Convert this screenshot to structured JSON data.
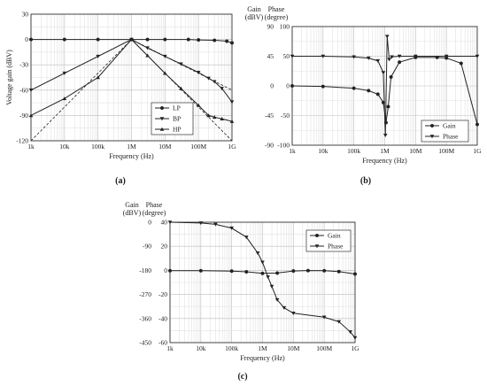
{
  "figure": {
    "panel_labels": [
      "(a)",
      "(b)",
      "(c)"
    ]
  },
  "chart_data": [
    {
      "panel": "(a)",
      "type": "line",
      "xlabel": "Frequency (Hz)",
      "ylabel": "Voltage gain (dBV)",
      "xscale": "log",
      "xlim": [
        1000,
        1000000000
      ],
      "ylim": [
        -120,
        30
      ],
      "xticks": [
        1000,
        10000,
        100000,
        1000000,
        10000000,
        100000000,
        1000000000
      ],
      "xticklabels": [
        "1k",
        "10k",
        "100k",
        "1M",
        "10M",
        "100M",
        "1G"
      ],
      "yticks": [
        -120,
        -90,
        -60,
        -30,
        0,
        30
      ],
      "yticklabels": [
        "-120",
        "-90",
        "-60",
        "-30",
        "0",
        "30"
      ],
      "grid": true,
      "legend_position": "bottom-right",
      "series": [
        {
          "name": "LP",
          "marker": "circle",
          "x": [
            1000,
            10000,
            100000,
            1000000,
            3000000,
            10000000,
            50000000,
            100000000,
            300000000,
            700000000,
            1000000000
          ],
          "y": [
            0,
            0,
            0,
            0,
            0,
            0,
            0,
            -0.5,
            -1,
            -2,
            -4
          ]
        },
        {
          "name": "BP",
          "marker": "triangle-down",
          "x": [
            1000,
            10000,
            100000,
            1000000,
            3000000,
            10000000,
            30000000,
            100000000,
            200000000,
            300000000,
            500000000,
            1000000000
          ],
          "y": [
            -60,
            -40,
            -20,
            0,
            -10,
            -20,
            -29,
            -39,
            -46,
            -50,
            -58,
            -74
          ]
        },
        {
          "name": "HP",
          "marker": "triangle-up",
          "x": [
            1000,
            10000,
            100000,
            1000000,
            3000000,
            10000000,
            30000000,
            100000000,
            200000000,
            300000000,
            500000000,
            1000000000
          ],
          "y": [
            -90,
            -70,
            -45,
            0,
            -19,
            -40,
            -58,
            -78,
            -90,
            -92,
            -94,
            -97
          ]
        },
        {
          "name": "",
          "style": "dashed",
          "x": [
            1000,
            1000000,
            1000000000
          ],
          "y": [
            -120,
            0,
            -120
          ]
        },
        {
          "name": "",
          "style": "dashed",
          "x": [
            1000,
            1000000,
            1000000000
          ],
          "y": [
            -60,
            0,
            -60
          ]
        }
      ]
    },
    {
      "panel": "(b)",
      "type": "line",
      "xlabel": "Frequency (Hz)",
      "ylabel": "Gain (dBV)",
      "y2label": "Phase (degree)",
      "xscale": "log",
      "xlim": [
        1000,
        1000000000
      ],
      "ylim": [
        -100,
        100
      ],
      "y2lim": [
        -90,
        90
      ],
      "xticks": [
        1000,
        10000,
        100000,
        1000000,
        10000000,
        100000000,
        1000000000
      ],
      "xticklabels": [
        "1k",
        "10k",
        "100k",
        "1M",
        "10M",
        "100M",
        "1G"
      ],
      "yticks": [
        -100,
        -50,
        0,
        50,
        100
      ],
      "yticklabels": [
        "-100",
        "-50",
        "0",
        "50",
        "100"
      ],
      "y2ticks": [
        -90,
        -45,
        0,
        45,
        90
      ],
      "y2ticklabels": [
        "-90",
        "-45",
        "0",
        "45",
        "90"
      ],
      "grid": true,
      "legend_position": "bottom-right",
      "series": [
        {
          "name": "Gain",
          "marker": "circle",
          "x": [
            1000,
            10000,
            100000,
            300000,
            600000,
            900000,
            1100000,
            1300000,
            1600000,
            3000000,
            10000000,
            50000000,
            100000000,
            300000000,
            1000000000
          ],
          "y": [
            0,
            -1,
            -4,
            -8,
            -14,
            -28,
            -62,
            -35,
            15,
            40,
            48,
            48,
            47,
            38,
            -65
          ]
        },
        {
          "name": "Phase",
          "marker": "triangle-down",
          "x": [
            1000,
            10000,
            100000,
            300000,
            600000,
            900000,
            1050000,
            1200000,
            1400000,
            1700000,
            3000000,
            10000000,
            100000000,
            1000000000
          ],
          "y": [
            45,
            45,
            44,
            42,
            38,
            20,
            -75,
            75,
            40,
            44,
            45,
            45,
            45,
            45
          ]
        }
      ]
    },
    {
      "panel": "(c)",
      "type": "line",
      "xlabel": "Frequency (Hz)",
      "ylabel": "Gain (dBV)",
      "y2label": "Phase (degree)",
      "xscale": "log",
      "xlim": [
        1000,
        1000000000
      ],
      "ylim": [
        -60,
        40
      ],
      "y2lim": [
        -450,
        0
      ],
      "xticks": [
        1000,
        10000,
        100000,
        1000000,
        10000000,
        100000000,
        1000000000
      ],
      "xticklabels": [
        "1k",
        "10k",
        "100k",
        "1M",
        "10M",
        "100M",
        "1G"
      ],
      "yticks": [
        -60,
        -40,
        -20,
        0,
        20,
        40
      ],
      "yticklabels": [
        "-60",
        "-40",
        "-20",
        "0",
        "20",
        "40"
      ],
      "y2ticks": [
        -450,
        -360,
        -270,
        -180,
        -90,
        0
      ],
      "y2ticklabels": [
        "-450",
        "-360",
        "-270",
        "-180",
        "-90",
        "0"
      ],
      "grid": true,
      "legend_position": "top-right",
      "series": [
        {
          "name": "Gain",
          "marker": "circle",
          "x": [
            1000,
            10000,
            100000,
            300000,
            1000000,
            3000000,
            10000000,
            30000000,
            100000000,
            300000000,
            1000000000
          ],
          "y": [
            -0.3,
            -0.3,
            -0.6,
            -1.2,
            -2.5,
            -2.2,
            -0.5,
            -0.2,
            -0.3,
            -1,
            -3
          ]
        },
        {
          "name": "Phase",
          "marker": "triangle-down",
          "x": [
            1000,
            10000,
            30000,
            100000,
            300000,
            700000,
            1000000,
            1500000,
            2000000,
            3000000,
            5000000,
            10000000,
            100000000,
            300000000,
            700000000,
            1000000000
          ],
          "y": [
            0,
            -3,
            -8,
            -22,
            -56,
            -115,
            -150,
            -205,
            -240,
            -290,
            -320,
            -340,
            -355,
            -372,
            -410,
            -432
          ]
        }
      ]
    }
  ]
}
